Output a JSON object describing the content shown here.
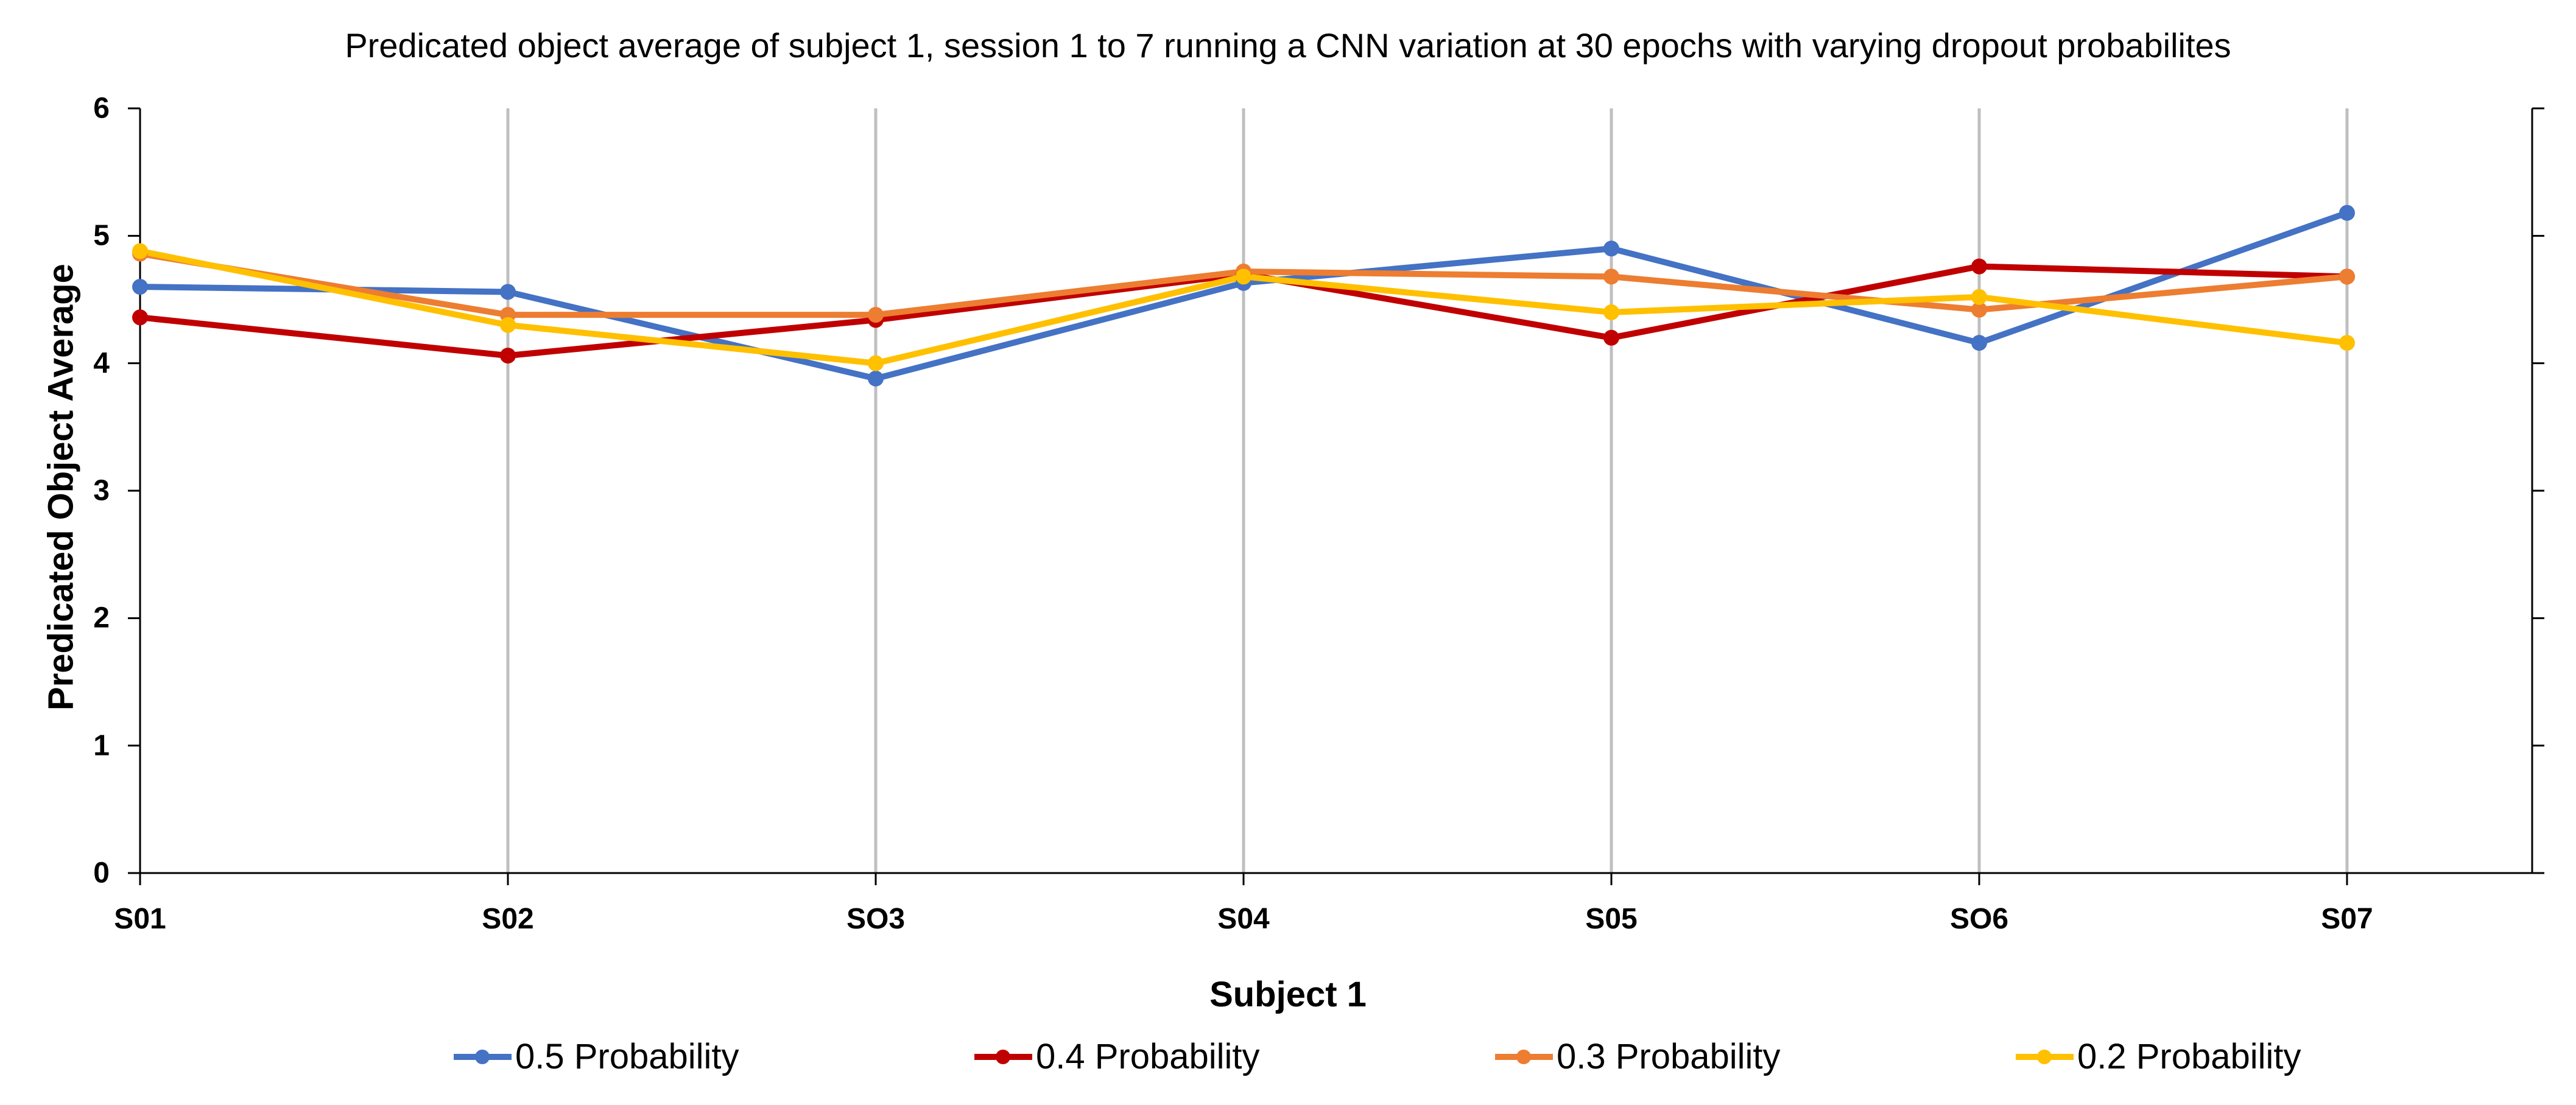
{
  "chart_data": {
    "type": "line",
    "title": "Predicated object average of subject 1, session 1 to 7 running a CNN variation at 30 epochs with varying dropout probabilites",
    "xlabel": "Subject 1",
    "ylabel": "Predicated Object Average",
    "categories": [
      "S01",
      "S02",
      "SO3",
      "S04",
      "S05",
      "SO6",
      "S07"
    ],
    "ylim": [
      0,
      6
    ],
    "yticks": [
      "0",
      "1",
      "2",
      "3",
      "4",
      "5",
      "6"
    ],
    "grid": "vertical",
    "legend_position": "bottom",
    "series": [
      {
        "name": "0.5 Probability",
        "color": "#4472C4",
        "values": [
          4.6,
          4.56,
          3.88,
          4.63,
          4.9,
          4.16,
          5.18
        ]
      },
      {
        "name": "0.4 Probability",
        "color": "#C00000",
        "values": [
          4.36,
          4.06,
          4.34,
          4.7,
          4.2,
          4.76,
          4.68
        ]
      },
      {
        "name": "0.3 Probability",
        "color": "#ED7D31",
        "values": [
          4.86,
          4.38,
          4.38,
          4.72,
          4.68,
          4.42,
          4.68
        ]
      },
      {
        "name": "0.2 Probability",
        "color": "#FFC000",
        "values": [
          4.88,
          4.3,
          4.0,
          4.68,
          4.4,
          4.52,
          4.16
        ]
      }
    ]
  }
}
